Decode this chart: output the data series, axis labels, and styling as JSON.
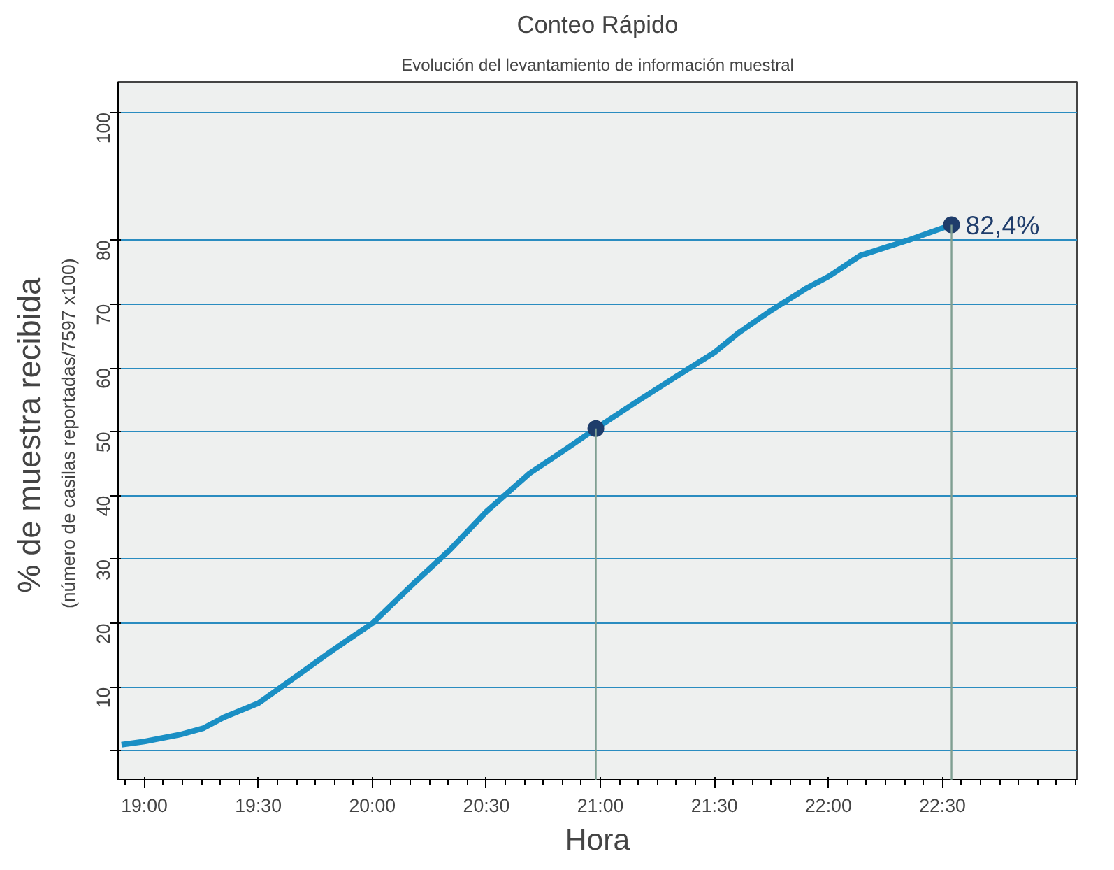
{
  "chart_data": {
    "type": "line",
    "title": "Conteo Rápido",
    "subtitle": "Evolución del levantamiento de información muestral",
    "xlabel": "Hora",
    "ylabel": "%  de muestra recibida",
    "annotations": [
      "(número de casilas reportadas/7597  x100)",
      {
        "text": "82,4%",
        "x": 22.54,
        "y": 82.4
      }
    ],
    "series": [
      {
        "color": "#1a8fc4",
        "x": [
          18.9,
          19.0,
          19.16,
          19.26,
          19.35,
          19.5,
          19.67,
          19.83,
          20.0,
          20.18,
          20.34,
          20.5,
          20.69,
          20.85,
          20.98,
          21.15,
          21.33,
          21.5,
          21.61,
          21.74,
          21.9,
          22.0,
          22.14,
          22.35,
          22.54
        ],
        "values": [
          1.0,
          1.5,
          2.6,
          3.6,
          5.3,
          7.5,
          11.8,
          15.9,
          20.0,
          26.2,
          31.5,
          37.5,
          43.5,
          47.3,
          50.5,
          54.5,
          58.6,
          62.4,
          65.6,
          68.8,
          72.4,
          74.3,
          77.6,
          80.0,
          82.4
        ]
      },
      {
        "type": "scatter",
        "marker": "circle",
        "color": "#1f3d6b",
        "x": [
          20.98,
          22.54
        ],
        "values": [
          50.5,
          82.4
        ],
        "errors": [
          [
            -4.5,
            50.5
          ],
          [
            -4.5,
            82.4
          ]
        ]
      }
    ],
    "xlim": [
      18.885,
      23.09
    ],
    "ylim": [
      -4.5,
      104.8
    ],
    "xticks": [
      {
        "value": 19,
        "label": "19:00"
      },
      {
        "value": 19.5,
        "label": "19:30"
      },
      {
        "value": 20,
        "label": "20:00"
      },
      {
        "value": 20.5,
        "label": "20:30"
      },
      {
        "value": 21,
        "label": "21:00"
      },
      {
        "value": 21.5,
        "label": "21:30"
      },
      {
        "value": 22,
        "label": "22:00"
      },
      {
        "value": 22.5,
        "label": "22:30"
      }
    ],
    "yticks": [
      {
        "value": 0,
        "label": null
      },
      10,
      20,
      30,
      40,
      50,
      60,
      70,
      80,
      100
    ],
    "grid": "y",
    "line_style": "solid"
  }
}
